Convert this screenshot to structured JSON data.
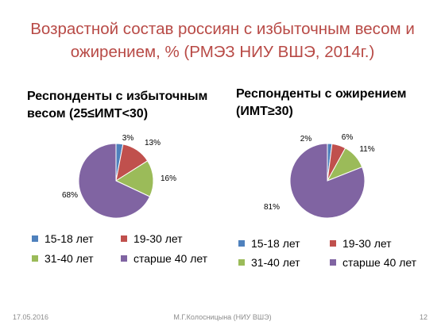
{
  "title_line1": "Возрастной состав россиян с избыточным весом и",
  "title_line2": "ожирением, % (РМЭЗ НИУ ВШЭ, 2014г.)",
  "colors": {
    "title": "#B84A46",
    "slices": [
      "#4F81BD",
      "#C0504D",
      "#9BBB59",
      "#8064A2"
    ]
  },
  "chart_data": [
    {
      "type": "pie",
      "title_line1": "Респонденты с избыточным",
      "title_line2": "весом (25≤ИМТ<30)",
      "categories": [
        "15-18 лет",
        "19-30 лет",
        "31-40 лет",
        "старше 40 лет"
      ],
      "values": [
        3,
        13,
        16,
        68
      ],
      "labels": [
        "3%",
        "13%",
        "16%",
        "68%"
      ],
      "legend_position": "bottom"
    },
    {
      "type": "pie",
      "title_line1": "Респонденты с ожирением",
      "title_line2": "(ИМТ≥30)",
      "categories": [
        "15-18 лет",
        "19-30 лет",
        "31-40 лет",
        "старше 40 лет"
      ],
      "values": [
        2,
        6,
        11,
        81
      ],
      "labels": [
        "2%",
        "6%",
        "11%",
        "81%"
      ],
      "legend_position": "bottom"
    }
  ],
  "footer": {
    "date": "17.05.2016",
    "author": "М.Г.Колосницына (НИУ ВШЭ)",
    "page": "12"
  }
}
